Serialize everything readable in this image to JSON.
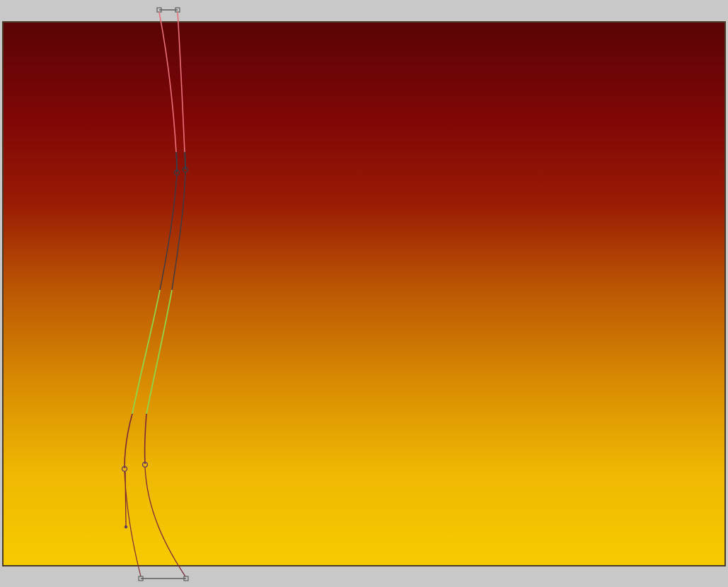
{
  "canvas": {
    "gradient_colors": [
      "#5a0405",
      "#7e0606",
      "#991a04",
      "#bd5903",
      "#d98d02",
      "#efb802",
      "#f6cb00"
    ]
  },
  "path_colors": {
    "upper_segment": "#e8707a",
    "junction_segment": "#3b3b46",
    "middle_segment": "#8fd64a",
    "lower_segment": "#7a2a36",
    "handle_box": "#5e5e5e",
    "anchor_point": "#5b3a66"
  },
  "icons": [
    "top-handle-box-icon",
    "bottom-handle-box-icon",
    "anchor-point-icon",
    "direction-point-icon"
  ]
}
